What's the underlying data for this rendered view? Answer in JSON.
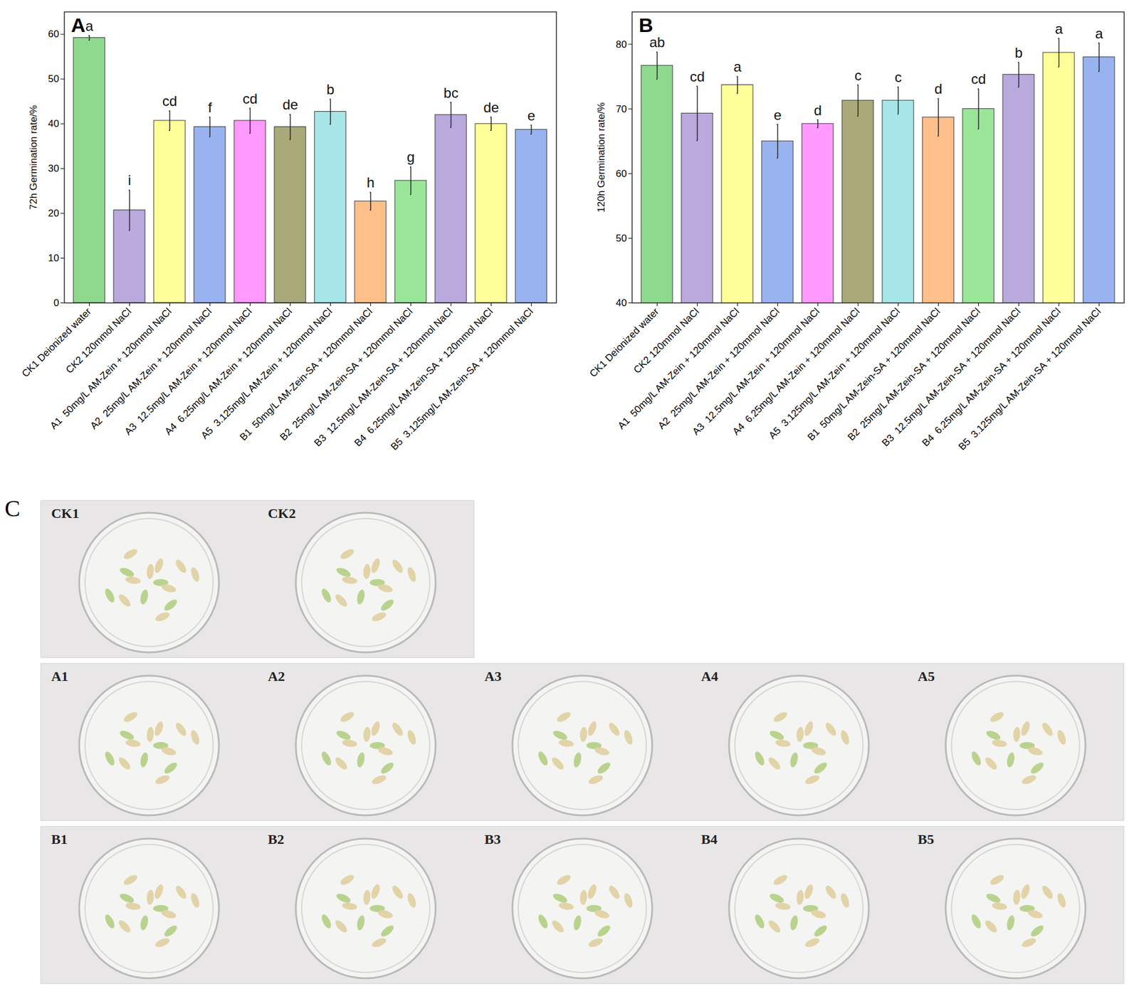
{
  "chart_data": [
    {
      "type": "bar",
      "title": "A",
      "y_label": "72h Germination rate/%",
      "categories": [
        "CK1 Deionized water",
        "CK2 120mmol NaCl",
        "A1  50mg/L AM-Zein + 120mmol NaCl",
        "A2  25mg/L AM-Zein + 120mmol NaCl",
        "A3  12.5mg/L AM-Zein + 120mmol NaCl",
        "A4  6.25mg/L AM-Zein + 120mmol NaCl",
        "A5  3.125mg/L AM-Zein + 120mmol NaCl",
        "B1  50mg/L AM-Zein-SA + 120mmol NaCl",
        "B2  25mg/L AM-Zein-SA + 120mmol NaCl",
        "B3  12.5mg/L AM-Zein-SA + 120mmol NaCl",
        "B4  6.25mg/L AM-Zein-SA + 120mmol NaCl",
        "B5  3.125mg/L AM-Zein-SA + 120mmol NaCl"
      ],
      "values": [
        59.2,
        20.7,
        40.7,
        39.3,
        40.7,
        39.3,
        42.7,
        22.7,
        27.3,
        42.0,
        40.0,
        38.7
      ],
      "errors": [
        0.5,
        4.5,
        2.2,
        2.2,
        2.8,
        2.8,
        2.8,
        2.0,
        3.1,
        2.8,
        1.5,
        1.0
      ],
      "letters": [
        "a",
        "i",
        "cd",
        "f",
        "cd",
        "de",
        "b",
        "h",
        "g",
        "bc",
        "de",
        "e"
      ],
      "colors": [
        "#8fd98f",
        "#b9a9dc",
        "#ffff99",
        "#99b3f0",
        "#ff99ff",
        "#a9a97a",
        "#a6e6e8",
        "#ffbf8a",
        "#99e699",
        "#b9a9dc",
        "#ffff99",
        "#99b3f0"
      ],
      "ylim": [
        0,
        65
      ],
      "yticks": [
        0,
        10,
        20,
        30,
        40,
        50,
        60
      ]
    },
    {
      "type": "bar",
      "title": "B",
      "y_label": "120h Germination rate/%",
      "categories": [
        "CK1 Deionized water",
        "CK2 120mmol NaCl",
        "A1  50mg/L AM-Zein + 120mmol NaCl",
        "A2  25mg/L AM-Zein + 120mmol NaCl",
        "A3  12.5mg/L AM-Zein + 120mmol NaCl",
        "A4  6.25mg/L AM-Zein + 120mmol NaCl",
        "A5  3.125mg/L AM-Zein + 120mmol NaCl",
        "B1  50mg/L AM-Zein-SA + 120mmol NaCl",
        "B2  25mg/L AM-Zein-SA + 120mmol NaCl",
        "B3  12.5mg/L AM-Zein-SA + 120mmol NaCl",
        "B4  6.25mg/L AM-Zein-SA + 120mmol NaCl",
        "B5  3.125mg/L AM-Zein-SA + 120mmol NaCl"
      ],
      "values": [
        76.7,
        69.3,
        73.7,
        65.0,
        67.7,
        71.3,
        71.3,
        68.7,
        70.0,
        75.3,
        78.7,
        78.0
      ],
      "errors": [
        2.1,
        4.2,
        1.3,
        2.6,
        0.6,
        2.4,
        2.1,
        2.9,
        3.1,
        1.9,
        2.2,
        2.2
      ],
      "letters": [
        "ab",
        "cd",
        "a",
        "e",
        "d",
        "c",
        "c",
        "d",
        "cd",
        "b",
        "a",
        "a"
      ],
      "colors": [
        "#8fd98f",
        "#b9a9dc",
        "#ffff99",
        "#99b3f0",
        "#ff99ff",
        "#a9a97a",
        "#a6e6e8",
        "#ffbf8a",
        "#99e699",
        "#b9a9dc",
        "#ffff99",
        "#99b3f0"
      ],
      "ylim": [
        40,
        85
      ],
      "yticks": [
        40,
        50,
        60,
        70,
        80
      ]
    }
  ],
  "panel_c": {
    "label": "C",
    "rows": [
      [
        "CK1",
        "CK2"
      ],
      [
        "A1",
        "A2",
        "A3",
        "A4",
        "A5"
      ],
      [
        "B1",
        "B2",
        "B3",
        "B4",
        "B5"
      ]
    ]
  }
}
